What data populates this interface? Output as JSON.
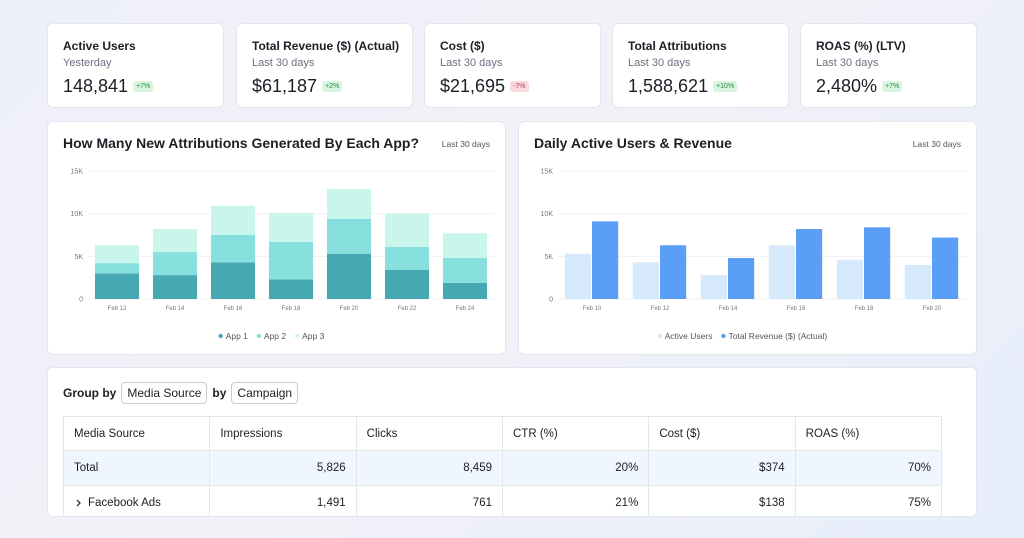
{
  "kpis": [
    {
      "title": "Active Users",
      "subtitle": "Yesterday",
      "value": "148,841",
      "change": "+7%",
      "trend": "up"
    },
    {
      "title": "Total Revenue ($) (Actual)",
      "subtitle": "Last 30 days",
      "value": "$61,187",
      "change": "+2%",
      "trend": "up"
    },
    {
      "title": "Cost ($)",
      "subtitle": "Last 30 days",
      "value": "$21,695",
      "change": "-7%",
      "trend": "down"
    },
    {
      "title": "Total Attributions",
      "subtitle": "Last 30 days",
      "value": "1,588,621",
      "change": "+10%",
      "trend": "up"
    },
    {
      "title": "ROAS (%) (LTV)",
      "subtitle": "Last 30 days",
      "value": "2,480%",
      "change": "+7%",
      "trend": "up"
    }
  ],
  "chart_data": [
    {
      "type": "bar",
      "stacked": true,
      "title": "How Many New Attributions Generated By Each App?",
      "subtitle": "Last 30 days",
      "categories": [
        "Feb 12",
        "Feb 14",
        "Feb 16",
        "Feb 18",
        "Feb 20",
        "Feb 22",
        "Feb 24"
      ],
      "series": [
        {
          "name": "App 1",
          "color": "#45a8b3",
          "values": [
            3000,
            2800,
            4300,
            2300,
            5300,
            3400,
            1900
          ]
        },
        {
          "name": "App 2",
          "color": "#87e0de",
          "values": [
            1200,
            2700,
            3200,
            4400,
            4100,
            2700,
            2900
          ]
        },
        {
          "name": "App 3",
          "color": "#c8f5ec",
          "values": [
            2100,
            2700,
            3400,
            3400,
            3500,
            3900,
            2900
          ]
        }
      ],
      "ylim": [
        0,
        15000
      ],
      "yticks": [
        0,
        {
          "value": 5000,
          "label": "5K"
        },
        {
          "value": 10000,
          "label": "10K"
        },
        {
          "value": 15000,
          "label": "15K"
        }
      ],
      "grid": true,
      "legend": "bottom"
    },
    {
      "type": "bar",
      "stacked": false,
      "title": "Daily Active Users & Revenue",
      "subtitle": "Last 30 days",
      "categories": [
        "Feb 10",
        "Feb 12",
        "Feb 14",
        "Feb 16",
        "Feb 18",
        "Feb 20"
      ],
      "series": [
        {
          "name": "Active Users",
          "color": "#d6eafb",
          "values": [
            5300,
            4300,
            2800,
            6300,
            4600,
            4000
          ]
        },
        {
          "name": "Total Revenue ($) (Actual)",
          "color": "#5a9ff5",
          "values": [
            9100,
            6300,
            4800,
            8200,
            8400,
            7200
          ]
        }
      ],
      "ylim": [
        0,
        15000
      ],
      "yticks": [
        0,
        {
          "value": 5000,
          "label": "5K"
        },
        {
          "value": 10000,
          "label": "10K"
        },
        {
          "value": 15000,
          "label": "15K"
        }
      ],
      "grid": true,
      "legend": "bottom"
    }
  ],
  "toolbar": {
    "group_by": "Group by",
    "first": "Media Source",
    "joiner": "by",
    "second": "Campaign"
  },
  "table": {
    "columns": [
      "Media Source",
      "Impressions",
      "Clicks",
      "CTR (%)",
      "Cost ($)",
      "ROAS (%)"
    ],
    "rows": [
      [
        "Total",
        "5,826",
        "8,459",
        "20%",
        "$374",
        "70%"
      ],
      [
        "Facebook Ads",
        "1,491",
        "761",
        "21%",
        "$138",
        "75%"
      ]
    ]
  }
}
